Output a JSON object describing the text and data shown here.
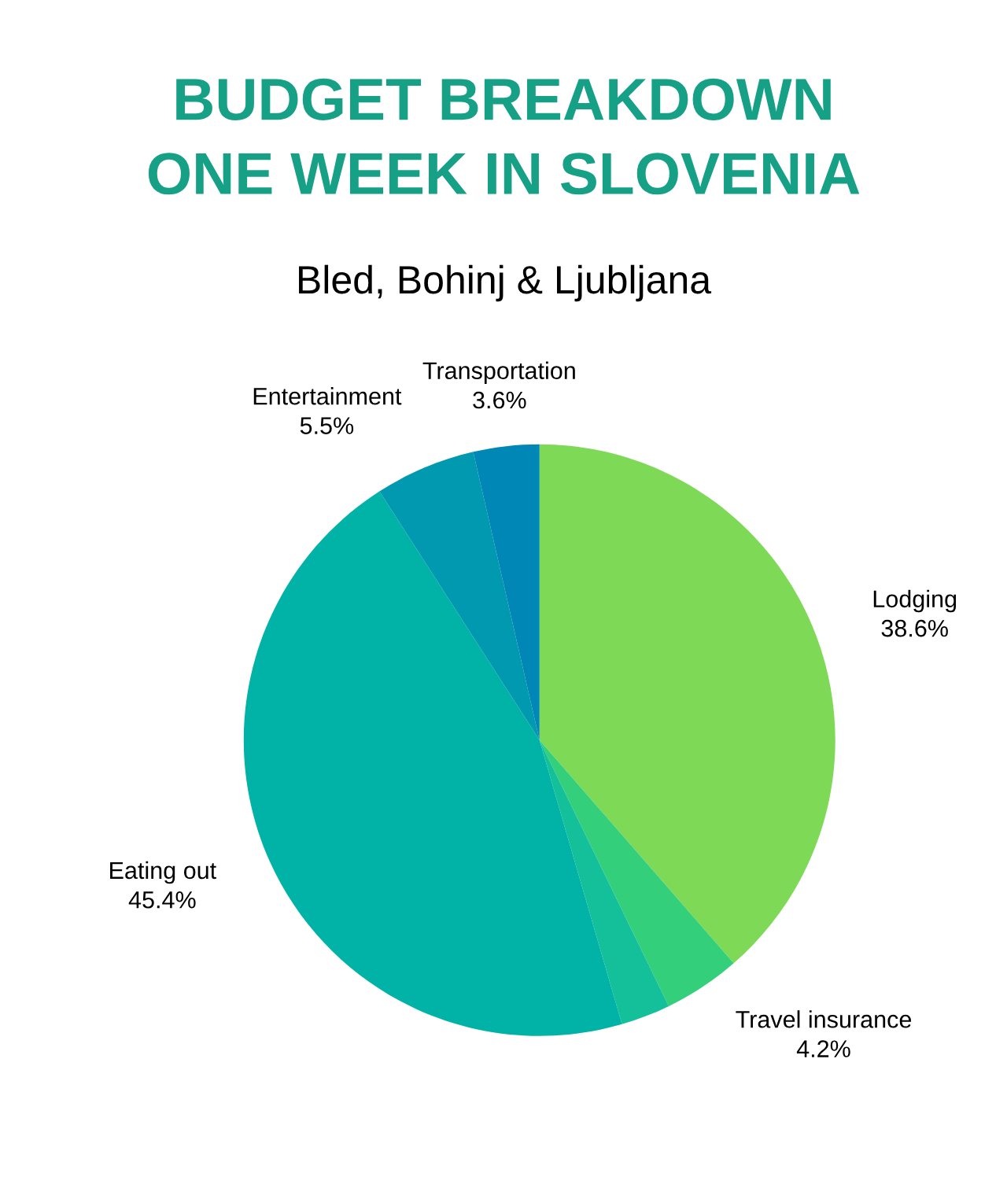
{
  "chart_data": {
    "type": "pie",
    "title": "BUDGET BREAKDOWN\nONE WEEK IN SLOVENIA",
    "subtitle": "Bled, Bohinj & Ljubljana",
    "categories": [
      "Lodging",
      "Travel insurance",
      null,
      "Eating out",
      "Entertainment",
      "Transportation"
    ],
    "values": [
      38.6,
      4.2,
      2.7,
      45.4,
      5.5,
      3.6
    ],
    "value_labels": [
      "38.6%",
      "4.2%",
      null,
      "45.4%",
      "5.5%",
      "3.6%"
    ],
    "colors": [
      "#7ed957",
      "#33cf7a",
      "#14c09a",
      "#00b3a6",
      "#0099b0",
      "#0087b5"
    ]
  }
}
